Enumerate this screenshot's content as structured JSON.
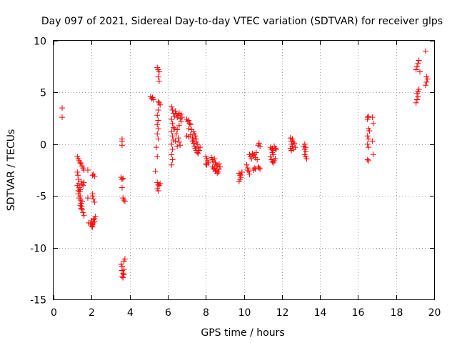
{
  "chart_data": {
    "type": "scatter",
    "title": "Day 097 of 2021, Sidereal Day-to-day VTEC variation (SDTVAR) for receiver glps",
    "xlabel": "GPS time / hours",
    "ylabel": "SDTVAR / TECUs",
    "xlim": [
      0,
      20
    ],
    "ylim": [
      -15,
      10
    ],
    "xticks": [
      0,
      2,
      4,
      6,
      8,
      10,
      12,
      14,
      16,
      18,
      20
    ],
    "yticks": [
      -15,
      -10,
      -5,
      0,
      5,
      10
    ],
    "xtick_labels": [
      "0",
      "2",
      "4",
      "6",
      "8",
      "10",
      "12",
      "14",
      "16",
      "18",
      "20"
    ],
    "ytick_labels": [
      "-15",
      "-10",
      "-5",
      "0",
      "5",
      "10"
    ],
    "grid": true,
    "marker": "+",
    "series": [
      {
        "name": "SDTVAR",
        "color": "#ff0000",
        "points": [
          [
            0.45,
            3.5
          ],
          [
            0.45,
            2.6
          ],
          [
            1.25,
            -1.2
          ],
          [
            1.3,
            -1.4
          ],
          [
            1.35,
            -1.6
          ],
          [
            1.4,
            -1.8
          ],
          [
            1.45,
            -1.9
          ],
          [
            1.5,
            -2.1
          ],
          [
            1.55,
            -2.3
          ],
          [
            1.6,
            -2.5
          ],
          [
            1.25,
            -2.7
          ],
          [
            1.28,
            -3.0
          ],
          [
            1.3,
            -3.4
          ],
          [
            1.32,
            -3.8
          ],
          [
            1.35,
            -4.2
          ],
          [
            1.38,
            -4.6
          ],
          [
            1.4,
            -5.0
          ],
          [
            1.42,
            -5.4
          ],
          [
            1.45,
            -5.7
          ],
          [
            1.48,
            -6.0
          ],
          [
            1.5,
            -6.3
          ],
          [
            1.55,
            -6.6
          ],
          [
            1.6,
            -6.9
          ],
          [
            1.3,
            -4.8
          ],
          [
            1.35,
            -5.2
          ],
          [
            1.4,
            -4.4
          ],
          [
            1.45,
            -3.6
          ],
          [
            1.5,
            -3.9
          ],
          [
            1.55,
            -4.0
          ],
          [
            1.6,
            -3.7
          ],
          [
            1.25,
            -4.0
          ],
          [
            1.3,
            -4.5
          ],
          [
            1.4,
            -5.9
          ],
          [
            1.45,
            -6.2
          ],
          [
            1.5,
            -5.5
          ],
          [
            1.8,
            -2.5
          ],
          [
            1.8,
            -5.2
          ],
          [
            1.85,
            -7.6
          ],
          [
            1.95,
            -7.7
          ],
          [
            2.0,
            -7.4
          ],
          [
            2.05,
            -3.0
          ],
          [
            2.1,
            -2.9
          ],
          [
            2.15,
            -3.1
          ],
          [
            2.05,
            -5.0
          ],
          [
            2.1,
            -5.3
          ],
          [
            2.15,
            -5.6
          ],
          [
            2.05,
            -4.8
          ],
          [
            2.0,
            -7.9
          ],
          [
            2.05,
            -8.0
          ],
          [
            2.1,
            -7.6
          ],
          [
            2.15,
            -7.2
          ],
          [
            2.2,
            -7.0
          ],
          [
            2.1,
            -7.3
          ],
          [
            2.15,
            -7.5
          ],
          [
            2.05,
            -7.8
          ],
          [
            3.6,
            0.5
          ],
          [
            3.6,
            0.3
          ],
          [
            3.6,
            -0.1
          ],
          [
            3.55,
            -3.2
          ],
          [
            3.6,
            -3.4
          ],
          [
            3.65,
            -3.3
          ],
          [
            3.6,
            -4.2
          ],
          [
            3.65,
            -5.2
          ],
          [
            3.7,
            -5.4
          ],
          [
            3.75,
            -5.5
          ],
          [
            3.55,
            -11.6
          ],
          [
            3.6,
            -11.8
          ],
          [
            3.6,
            -12.2
          ],
          [
            3.65,
            -12.5
          ],
          [
            3.6,
            -12.8
          ],
          [
            3.65,
            -12.9
          ],
          [
            3.7,
            -12.1
          ],
          [
            3.7,
            -11.3
          ],
          [
            3.75,
            -11.1
          ],
          [
            3.7,
            -12.6
          ],
          [
            5.1,
            4.6
          ],
          [
            5.15,
            4.4
          ],
          [
            5.2,
            4.5
          ],
          [
            5.25,
            4.3
          ],
          [
            5.45,
            7.4
          ],
          [
            5.5,
            7.2
          ],
          [
            5.55,
            7.0
          ],
          [
            5.5,
            6.5
          ],
          [
            5.55,
            6.1
          ],
          [
            5.5,
            4.1
          ],
          [
            5.55,
            4.0
          ],
          [
            5.6,
            3.8
          ],
          [
            5.5,
            3.3
          ],
          [
            5.45,
            2.8
          ],
          [
            5.5,
            2.3
          ],
          [
            5.45,
            1.9
          ],
          [
            5.5,
            1.5
          ],
          [
            5.45,
            1.0
          ],
          [
            5.5,
            0.5
          ],
          [
            5.4,
            -0.3
          ],
          [
            5.45,
            -1.2
          ],
          [
            5.35,
            -2.6
          ],
          [
            5.45,
            -3.7
          ],
          [
            5.5,
            -3.9
          ],
          [
            5.55,
            -4.0
          ],
          [
            5.6,
            -3.8
          ],
          [
            5.45,
            -4.3
          ],
          [
            5.5,
            -4.5
          ],
          [
            6.2,
            3.6
          ],
          [
            6.25,
            3.3
          ],
          [
            6.3,
            3.0
          ],
          [
            6.35,
            2.7
          ],
          [
            6.2,
            2.4
          ],
          [
            6.25,
            2.0
          ],
          [
            6.3,
            1.6
          ],
          [
            6.2,
            1.2
          ],
          [
            6.25,
            0.8
          ],
          [
            6.3,
            0.4
          ],
          [
            6.2,
            0.0
          ],
          [
            6.25,
            -0.5
          ],
          [
            6.2,
            -1.0
          ],
          [
            6.25,
            -1.5
          ],
          [
            6.2,
            -2.0
          ],
          [
            6.4,
            3.2
          ],
          [
            6.45,
            2.9
          ],
          [
            6.5,
            2.6
          ],
          [
            6.55,
            2.8
          ],
          [
            6.6,
            3.0
          ],
          [
            6.65,
            2.5
          ],
          [
            6.7,
            2.2
          ],
          [
            6.6,
            1.8
          ],
          [
            6.5,
            1.4
          ],
          [
            6.45,
            1.0
          ],
          [
            6.55,
            0.6
          ],
          [
            6.6,
            0.2
          ],
          [
            6.65,
            -0.1
          ],
          [
            6.5,
            -0.2
          ],
          [
            6.4,
            0.3
          ],
          [
            6.35,
            1.5
          ],
          [
            6.7,
            2.9
          ],
          [
            6.75,
            2.6
          ],
          [
            7.0,
            2.4
          ],
          [
            7.05,
            2.2
          ],
          [
            7.1,
            2.3
          ],
          [
            7.15,
            2.0
          ],
          [
            7.2,
            1.9
          ],
          [
            7.1,
            1.5
          ],
          [
            7.0,
            0.8
          ],
          [
            7.1,
            0.7
          ],
          [
            7.2,
            0.9
          ],
          [
            7.3,
            0.6
          ],
          [
            7.35,
            1.2
          ],
          [
            7.4,
            1.0
          ],
          [
            7.45,
            0.8
          ],
          [
            7.5,
            0.5
          ],
          [
            7.3,
            0.3
          ],
          [
            7.35,
            0.1
          ],
          [
            7.4,
            -0.2
          ],
          [
            7.45,
            -0.4
          ],
          [
            7.5,
            0.2
          ],
          [
            7.55,
            0.0
          ],
          [
            7.6,
            -0.3
          ],
          [
            7.5,
            -0.6
          ],
          [
            7.55,
            -0.8
          ],
          [
            7.6,
            -0.9
          ],
          [
            7.65,
            -0.6
          ],
          [
            7.7,
            -0.3
          ],
          [
            7.25,
            1.4
          ],
          [
            7.35,
            0.4
          ],
          [
            8.0,
            -1.2
          ],
          [
            8.05,
            -1.4
          ],
          [
            8.1,
            -1.6
          ],
          [
            8.0,
            -1.9
          ],
          [
            8.05,
            -2.0
          ],
          [
            8.15,
            -1.8
          ],
          [
            8.3,
            -1.3
          ],
          [
            8.35,
            -1.5
          ],
          [
            8.4,
            -1.7
          ],
          [
            8.45,
            -1.4
          ],
          [
            8.5,
            -1.8
          ],
          [
            8.55,
            -2.0
          ],
          [
            8.6,
            -2.1
          ],
          [
            8.35,
            -2.2
          ],
          [
            8.4,
            -2.4
          ],
          [
            8.45,
            -2.3
          ],
          [
            8.5,
            -2.6
          ],
          [
            8.55,
            -2.5
          ],
          [
            8.6,
            -2.8
          ],
          [
            8.65,
            -2.7
          ],
          [
            8.7,
            -2.4
          ],
          [
            8.75,
            -2.2
          ],
          [
            8.7,
            -1.9
          ],
          [
            9.75,
            -2.8
          ],
          [
            9.8,
            -3.0
          ],
          [
            9.85,
            -3.2
          ],
          [
            9.8,
            -3.4
          ],
          [
            9.75,
            -3.6
          ],
          [
            9.9,
            -2.7
          ],
          [
            9.85,
            -2.9
          ],
          [
            10.15,
            -2.0
          ],
          [
            10.2,
            -2.3
          ],
          [
            10.25,
            -2.6
          ],
          [
            10.3,
            -2.9
          ],
          [
            10.2,
            -2.5
          ],
          [
            10.3,
            -1.0
          ],
          [
            10.35,
            -1.2
          ],
          [
            10.4,
            -1.4
          ],
          [
            10.45,
            -0.9
          ],
          [
            10.5,
            -1.1
          ],
          [
            10.55,
            -1.0
          ],
          [
            10.6,
            -1.3
          ],
          [
            10.65,
            -0.8
          ],
          [
            10.7,
            -1.5
          ],
          [
            10.5,
            -2.5
          ],
          [
            10.55,
            -2.3
          ],
          [
            10.6,
            -2.4
          ],
          [
            10.75,
            -2.2
          ],
          [
            10.8,
            -2.3
          ],
          [
            10.85,
            -2.4
          ],
          [
            10.75,
            -0.1
          ],
          [
            10.8,
            0.1
          ],
          [
            10.85,
            -0.2
          ],
          [
            11.4,
            -0.3
          ],
          [
            11.45,
            -0.5
          ],
          [
            11.5,
            -0.4
          ],
          [
            11.55,
            -0.6
          ],
          [
            11.6,
            -0.2
          ],
          [
            11.65,
            -0.4
          ],
          [
            11.7,
            -0.5
          ],
          [
            11.45,
            -1.5
          ],
          [
            11.5,
            -1.7
          ],
          [
            11.55,
            -1.8
          ],
          [
            11.6,
            -1.6
          ],
          [
            11.65,
            -1.4
          ],
          [
            11.4,
            -1.2
          ],
          [
            11.5,
            -0.8
          ],
          [
            11.55,
            -1.0
          ],
          [
            12.45,
            0.6
          ],
          [
            12.5,
            0.3
          ],
          [
            12.55,
            0.5
          ],
          [
            12.6,
            0.2
          ],
          [
            12.5,
            0.0
          ],
          [
            12.55,
            -0.2
          ],
          [
            12.45,
            -0.4
          ],
          [
            12.5,
            -0.6
          ],
          [
            12.6,
            -0.5
          ],
          [
            12.65,
            0.1
          ],
          [
            12.7,
            -0.3
          ],
          [
            13.15,
            -0.2
          ],
          [
            13.2,
            -0.5
          ],
          [
            13.25,
            -0.7
          ],
          [
            13.2,
            -1.0
          ],
          [
            13.25,
            -1.2
          ],
          [
            13.3,
            -1.4
          ],
          [
            13.2,
            0.0
          ],
          [
            13.25,
            -0.3
          ],
          [
            16.5,
            2.6
          ],
          [
            16.55,
            2.7
          ],
          [
            16.5,
            2.4
          ],
          [
            16.55,
            1.5
          ],
          [
            16.6,
            1.3
          ],
          [
            16.5,
            0.8
          ],
          [
            16.55,
            0.5
          ],
          [
            16.5,
            0.0
          ],
          [
            16.55,
            -0.3
          ],
          [
            16.5,
            -1.5
          ],
          [
            16.55,
            -1.6
          ],
          [
            16.75,
            2.6
          ],
          [
            16.8,
            2.0
          ],
          [
            16.75,
            0.3
          ],
          [
            16.8,
            -1.0
          ],
          [
            19.05,
            4.0
          ],
          [
            19.1,
            4.3
          ],
          [
            19.15,
            4.6
          ],
          [
            19.1,
            4.9
          ],
          [
            19.15,
            5.1
          ],
          [
            19.2,
            5.3
          ],
          [
            19.05,
            7.2
          ],
          [
            19.1,
            7.5
          ],
          [
            19.15,
            7.8
          ],
          [
            19.2,
            8.1
          ],
          [
            19.25,
            7.0
          ],
          [
            19.55,
            9.0
          ],
          [
            19.6,
            6.5
          ],
          [
            19.65,
            6.3
          ],
          [
            19.6,
            6.0
          ],
          [
            19.55,
            5.7
          ]
        ]
      }
    ]
  }
}
